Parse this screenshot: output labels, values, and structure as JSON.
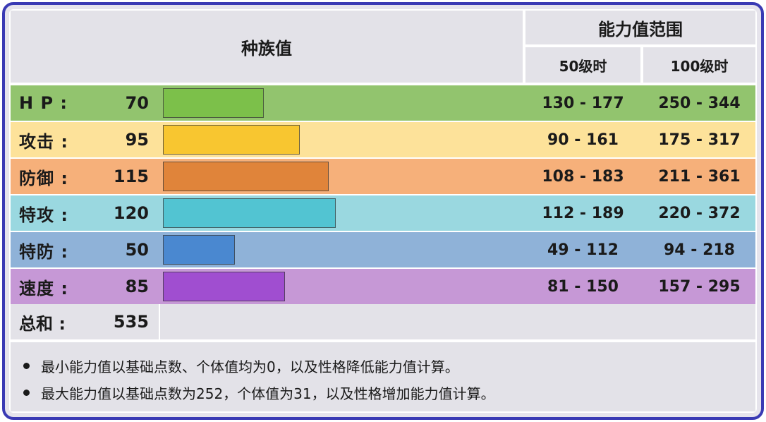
{
  "header": {
    "base_stats": "种族值",
    "stat_range": "能力值范围",
    "level50": "50级时",
    "level100": "100级时"
  },
  "max_base": 255,
  "stats": [
    {
      "label": "H P :",
      "value": "70",
      "base": 70,
      "range50": "130 - 177",
      "range100": "250 - 344",
      "row_color": "#92c46e",
      "bar_color": "#7cc04a"
    },
    {
      "label": "攻击 :",
      "value": "95",
      "base": 95,
      "range50": "90 - 161",
      "range100": "175 - 317",
      "row_color": "#fde29a",
      "bar_color": "#f8c630"
    },
    {
      "label": "防御 :",
      "value": "115",
      "base": 115,
      "range50": "108 - 183",
      "range100": "211 - 361",
      "row_color": "#f6b07a",
      "bar_color": "#e0843a"
    },
    {
      "label": "特攻 :",
      "value": "120",
      "base": 120,
      "range50": "112 - 189",
      "range100": "220 - 372",
      "row_color": "#9ad8e0",
      "bar_color": "#52c4d2"
    },
    {
      "label": "特防 :",
      "value": "50",
      "base": 50,
      "range50": "49 - 112",
      "range100": "94 - 218",
      "row_color": "#8fb2d8",
      "bar_color": "#4a88d0"
    },
    {
      "label": "速度 :",
      "value": "85",
      "base": 85,
      "range50": "81 - 150",
      "range100": "157 - 295",
      "row_color": "#c698d6",
      "bar_color": "#a04ed0"
    }
  ],
  "total": {
    "label": "总和 :",
    "value": "535"
  },
  "notes": [
    "最小能力值以基础点数、个体值均为0，以及性格降低能力值计算。",
    "最大能力值以基础点数为252，个体值为31，以及性格增加能力值计算。"
  ],
  "colors": {
    "border": "#3a3ab4",
    "header_bg": "#e3e2e8"
  }
}
